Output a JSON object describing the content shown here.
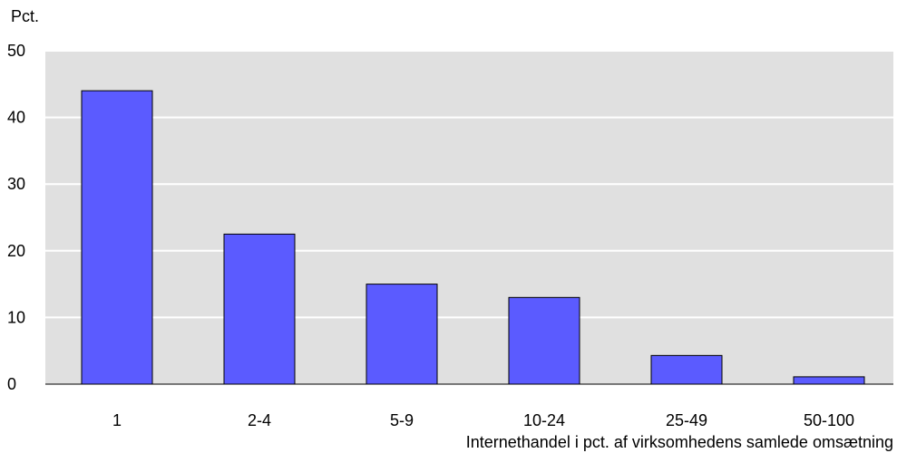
{
  "chart_data": {
    "type": "bar",
    "title": "",
    "ylabel": "Pct.",
    "xlabel": "Internethandel i pct. af virksomhedens samlede omsætning",
    "categories": [
      "1",
      "2-4",
      "5-9",
      "10-24",
      "25-49",
      "50-100"
    ],
    "values": [
      44,
      22.5,
      15,
      13,
      4.3,
      1.1
    ],
    "ylim": [
      0,
      50
    ],
    "yticks": [
      0,
      10,
      20,
      30,
      40,
      50
    ],
    "grid": true,
    "legend": "none",
    "colors": {
      "bar": "#5b5bff",
      "bar_stroke": "#000000",
      "plot_bg": "#e0e0e0",
      "grid": "#ffffff"
    }
  }
}
